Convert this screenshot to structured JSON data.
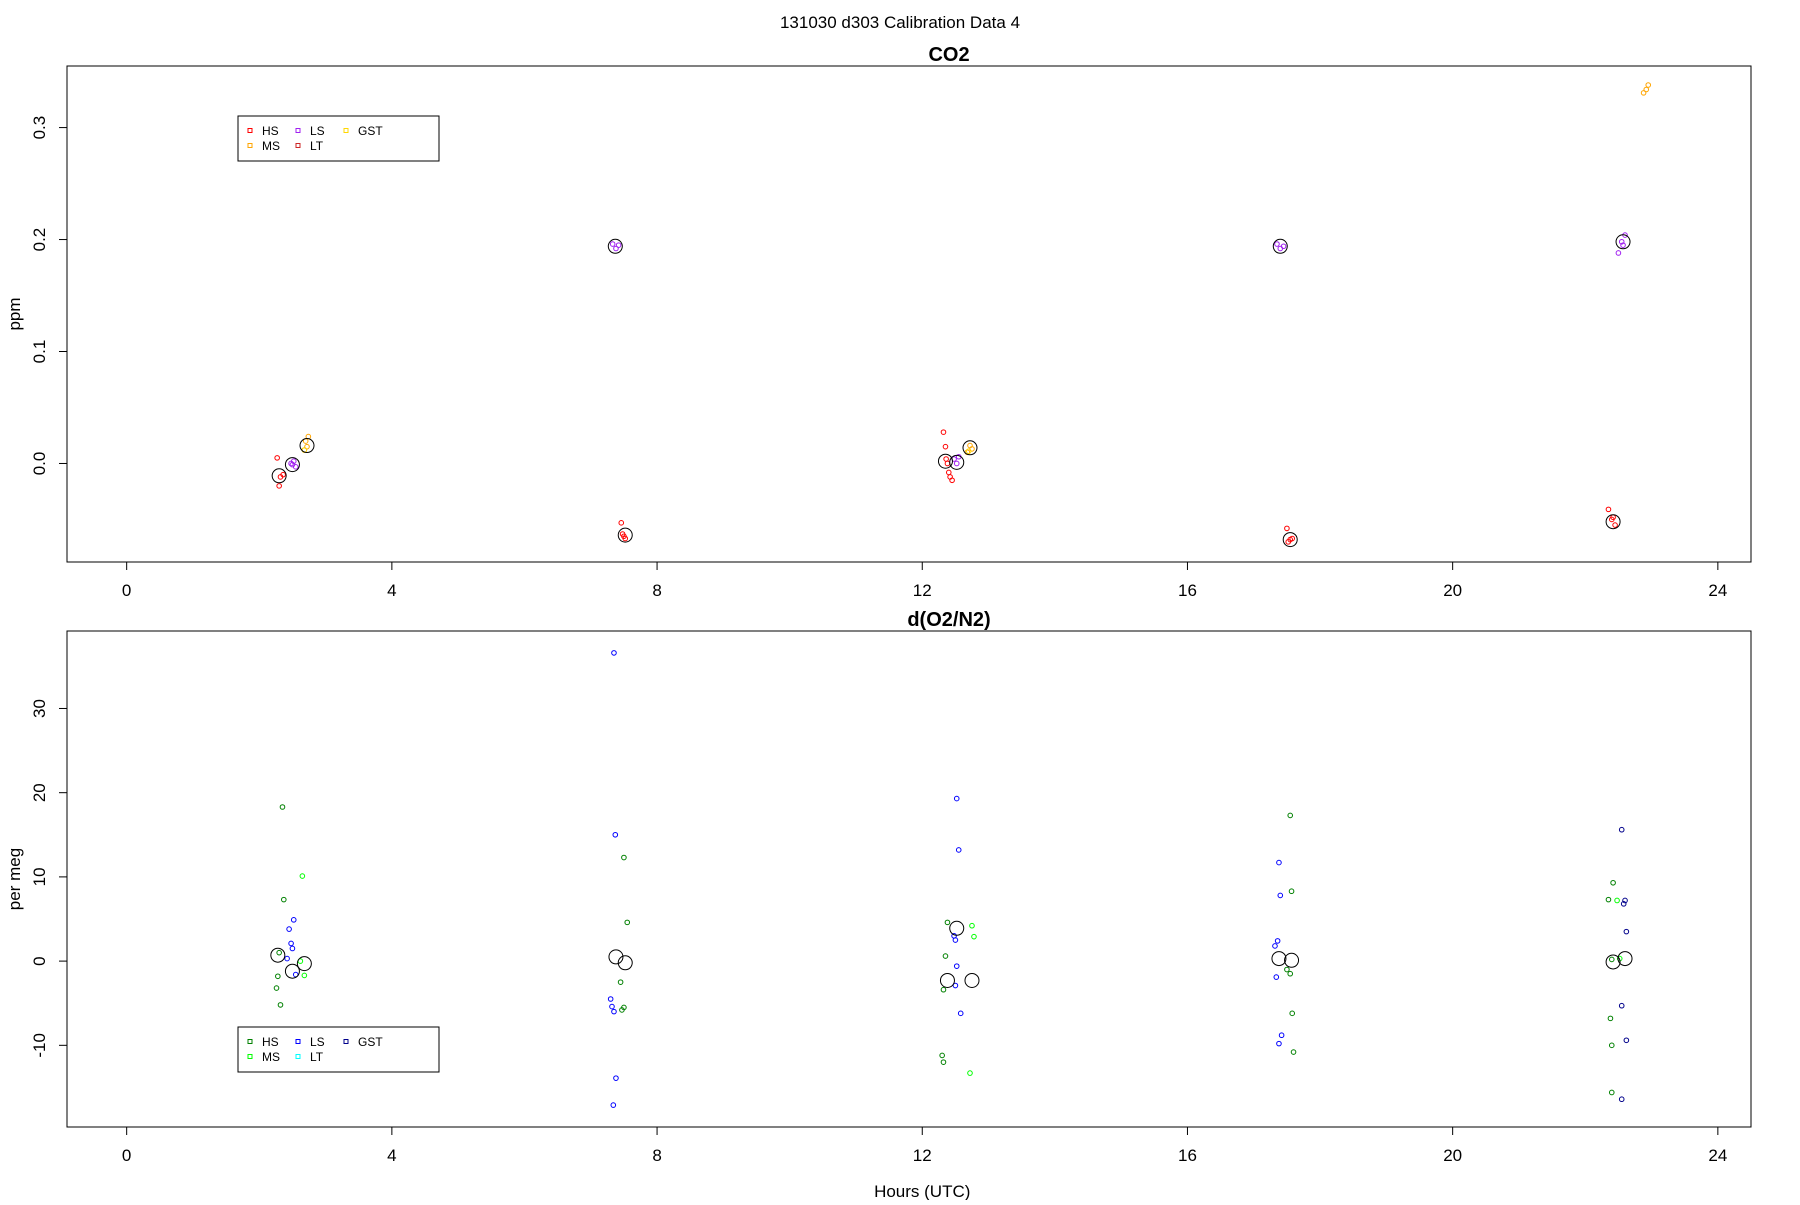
{
  "page_title": "131030   d303   Calibration Data 4",
  "chart_data": [
    {
      "type": "scatter",
      "title": "CO2",
      "xlabel": "",
      "ylabel": "ppm",
      "xlim": [
        -0.9,
        24.5
      ],
      "ylim": [
        -0.088,
        0.355
      ],
      "xticks": [
        0,
        4,
        8,
        12,
        16,
        20,
        24
      ],
      "yticks": [
        0.0,
        0.1,
        0.2,
        0.3
      ],
      "ytick_labels": [
        "0.0",
        "0.1",
        "0.2",
        "0.3"
      ],
      "legend": {
        "placement": "top-left",
        "entries": [
          {
            "label": "HS",
            "color": "#ff0000"
          },
          {
            "label": "MS",
            "color": "#ffa500"
          },
          {
            "label": "LS",
            "color": "#a020f0"
          },
          {
            "label": "LT",
            "color": "#cd2626"
          },
          {
            "label": "GST",
            "color": "#ffd700"
          }
        ]
      },
      "series": [
        {
          "name": "HS",
          "color": "#ff0000",
          "points": [
            [
              2.27,
              0.005
            ],
            [
              2.32,
              -0.012
            ],
            [
              2.3,
              -0.02
            ],
            [
              2.36,
              -0.01
            ],
            [
              7.46,
              -0.053
            ],
            [
              7.5,
              -0.065
            ],
            [
              7.52,
              -0.067
            ],
            [
              7.48,
              -0.063
            ],
            [
              12.32,
              0.028
            ],
            [
              12.35,
              0.015
            ],
            [
              12.38,
              0.0
            ],
            [
              12.4,
              -0.008
            ],
            [
              12.42,
              -0.012
            ],
            [
              12.45,
              -0.015
            ],
            [
              12.36,
              0.004
            ],
            [
              17.5,
              -0.058
            ],
            [
              17.55,
              -0.068
            ],
            [
              17.58,
              -0.067
            ],
            [
              17.52,
              -0.07
            ],
            [
              22.35,
              -0.041
            ],
            [
              22.4,
              -0.05
            ],
            [
              22.45,
              -0.055
            ],
            [
              22.42,
              -0.048
            ]
          ]
        },
        {
          "name": "MS",
          "color": "#ffa500",
          "points": [
            [
              2.7,
              0.02
            ],
            [
              2.72,
              0.015
            ],
            [
              2.74,
              0.024
            ],
            [
              2.68,
              0.012
            ],
            [
              12.68,
              0.01
            ],
            [
              12.72,
              0.016
            ],
            [
              12.75,
              0.013
            ],
            [
              22.88,
              0.331
            ],
            [
              22.92,
              0.334
            ],
            [
              22.95,
              0.338
            ]
          ]
        },
        {
          "name": "LS",
          "color": "#a020f0",
          "points": [
            [
              2.48,
              0.0
            ],
            [
              2.52,
              0.002
            ],
            [
              2.55,
              -0.003
            ],
            [
              2.5,
              -0.001
            ],
            [
              7.33,
              0.196
            ],
            [
              7.38,
              0.192
            ],
            [
              7.42,
              0.195
            ],
            [
              12.48,
              0.004
            ],
            [
              12.52,
              0.0
            ],
            [
              12.55,
              0.006
            ],
            [
              17.35,
              0.196
            ],
            [
              17.4,
              0.192
            ],
            [
              17.45,
              0.194
            ],
            [
              22.5,
              0.188
            ],
            [
              22.55,
              0.198
            ],
            [
              22.6,
              0.204
            ],
            [
              22.57,
              0.195
            ]
          ]
        },
        {
          "name": "LT",
          "color": "#cd2626",
          "points": []
        },
        {
          "name": "GST",
          "color": "#ffd700",
          "points": [
            [
              2.68,
              0.012
            ],
            [
              12.7,
              0.011
            ]
          ]
        }
      ],
      "means": [
        [
          2.3,
          -0.011
        ],
        [
          2.5,
          -0.001
        ],
        [
          2.72,
          0.016
        ],
        [
          7.37,
          0.194
        ],
        [
          7.52,
          -0.064
        ],
        [
          12.35,
          0.002
        ],
        [
          12.52,
          0.001
        ],
        [
          12.72,
          0.014
        ],
        [
          17.4,
          0.194
        ],
        [
          17.55,
          -0.068
        ],
        [
          22.42,
          -0.052
        ],
        [
          22.57,
          0.198
        ]
      ]
    },
    {
      "type": "scatter",
      "title": "d(O2/N2)",
      "xlabel": "Hours (UTC)",
      "ylabel": "per meg",
      "xlim": [
        -0.9,
        24.5
      ],
      "ylim": [
        -19.7,
        39.2
      ],
      "xticks": [
        0,
        4,
        8,
        12,
        16,
        20,
        24
      ],
      "yticks": [
        -10,
        0,
        10,
        20,
        30
      ],
      "ytick_labels": [
        "-10",
        "0",
        "10",
        "20",
        "30"
      ],
      "legend": {
        "placement": "bottom-left",
        "entries": [
          {
            "label": "HS",
            "color": "#008000"
          },
          {
            "label": "MS",
            "color": "#00ff00"
          },
          {
            "label": "LS",
            "color": "#0000ff"
          },
          {
            "label": "LT",
            "color": "#00ffff"
          },
          {
            "label": "GST",
            "color": "#00008b"
          }
        ]
      },
      "series": [
        {
          "name": "HS",
          "color": "#008000",
          "points": [
            [
              2.35,
              18.3
            ],
            [
              2.37,
              7.3
            ],
            [
              2.3,
              1.0
            ],
            [
              2.28,
              -1.8
            ],
            [
              2.26,
              -3.2
            ],
            [
              2.32,
              -5.2
            ],
            [
              7.5,
              12.3
            ],
            [
              7.55,
              4.6
            ],
            [
              7.45,
              -2.5
            ],
            [
              7.47,
              -5.8
            ],
            [
              7.5,
              -5.5
            ],
            [
              12.38,
              4.6
            ],
            [
              12.35,
              0.6
            ],
            [
              12.32,
              -3.4
            ],
            [
              12.3,
              -11.2
            ],
            [
              12.32,
              -12.0
            ],
            [
              17.55,
              17.3
            ],
            [
              17.57,
              8.3
            ],
            [
              17.5,
              -1.0
            ],
            [
              17.55,
              -1.5
            ],
            [
              17.58,
              -6.2
            ],
            [
              17.6,
              -10.8
            ],
            [
              22.42,
              9.3
            ],
            [
              22.35,
              7.3
            ],
            [
              22.4,
              0.2
            ],
            [
              22.38,
              -6.8
            ],
            [
              22.4,
              -10.0
            ],
            [
              22.4,
              -15.6
            ]
          ]
        },
        {
          "name": "MS",
          "color": "#00ff00",
          "points": [
            [
              2.65,
              10.1
            ],
            [
              2.68,
              -1.7
            ],
            [
              2.62,
              0.0
            ],
            [
              12.75,
              4.2
            ],
            [
              12.78,
              2.9
            ],
            [
              12.72,
              -13.3
            ],
            [
              22.48,
              7.2
            ],
            [
              22.52,
              0.3
            ]
          ]
        },
        {
          "name": "LS",
          "color": "#0000ff",
          "points": [
            [
              2.52,
              4.9
            ],
            [
              2.48,
              2.1
            ],
            [
              2.45,
              3.8
            ],
            [
              2.5,
              1.5
            ],
            [
              2.42,
              0.3
            ],
            [
              2.55,
              -1.6
            ],
            [
              7.35,
              36.6
            ],
            [
              7.37,
              15.0
            ],
            [
              7.3,
              -4.5
            ],
            [
              7.35,
              -6.0
            ],
            [
              7.32,
              -5.4
            ],
            [
              7.38,
              -13.9
            ],
            [
              7.34,
              -17.1
            ],
            [
              12.52,
              19.3
            ],
            [
              12.55,
              13.2
            ],
            [
              12.48,
              3.0
            ],
            [
              12.5,
              2.5
            ],
            [
              12.52,
              -0.6
            ],
            [
              12.5,
              -2.9
            ],
            [
              12.58,
              -6.2
            ],
            [
              17.38,
              11.7
            ],
            [
              17.4,
              7.8
            ],
            [
              17.36,
              2.4
            ],
            [
              17.32,
              1.8
            ],
            [
              17.34,
              -1.9
            ],
            [
              17.42,
              -8.8
            ],
            [
              17.38,
              -9.8
            ]
          ]
        },
        {
          "name": "LT",
          "color": "#00ffff",
          "points": []
        },
        {
          "name": "GST",
          "color": "#00008b",
          "points": [
            [
              22.55,
              15.6
            ],
            [
              22.6,
              7.2
            ],
            [
              22.62,
              3.5
            ],
            [
              22.55,
              -5.3
            ],
            [
              22.62,
              -9.4
            ],
            [
              22.55,
              -16.4
            ],
            [
              22.58,
              6.8
            ]
          ]
        }
      ],
      "means": [
        [
          2.28,
          0.7
        ],
        [
          2.5,
          -1.2
        ],
        [
          2.68,
          -0.3
        ],
        [
          7.38,
          0.5
        ],
        [
          7.52,
          -0.2
        ],
        [
          12.38,
          -2.3
        ],
        [
          12.52,
          3.9
        ],
        [
          12.75,
          -2.3
        ],
        [
          17.38,
          0.3
        ],
        [
          17.57,
          0.1
        ],
        [
          22.42,
          -0.1
        ],
        [
          22.6,
          0.3
        ]
      ]
    }
  ]
}
